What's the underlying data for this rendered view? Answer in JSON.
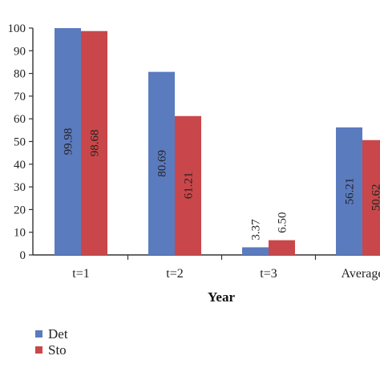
{
  "chart_data": {
    "type": "bar",
    "title": "",
    "xlabel": "Year",
    "ylabel": "",
    "ylim": [
      0,
      100
    ],
    "yticks": [
      "0",
      "10",
      "20",
      "30",
      "40",
      "50",
      "60",
      "70",
      "80",
      "90",
      "100"
    ],
    "categories": [
      "t=1",
      "t=2",
      "t=3",
      "Average"
    ],
    "series": [
      {
        "name": "Det",
        "color": "#5b7bbf",
        "values": [
          99.98,
          80.69,
          3.37,
          56.21
        ],
        "labels": [
          "99.98",
          "80.69",
          "3.37",
          "56.21"
        ]
      },
      {
        "name": "Sto",
        "color": "#c9474a",
        "values": [
          98.68,
          61.21,
          6.5,
          50.62
        ],
        "labels": [
          "98.68",
          "61.21",
          "6.50",
          "50.62"
        ]
      }
    ],
    "grid": false,
    "legend_position": "bottom-left"
  }
}
